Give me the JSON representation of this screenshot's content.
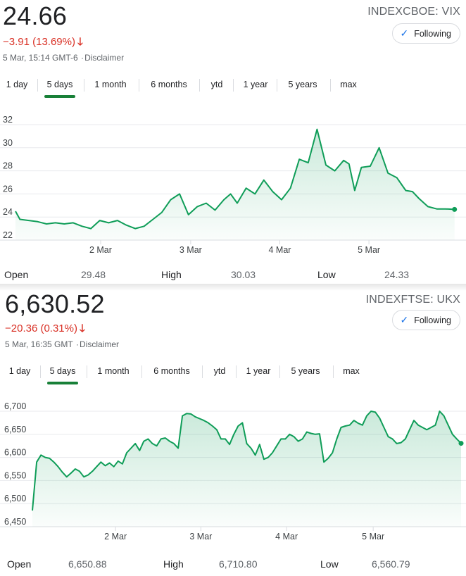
{
  "panels": [
    {
      "price": "24.66",
      "ticker": "INDEXCBOE: VIX",
      "change": "−3.91 (13.69%)",
      "change_arrow": "🡓",
      "timestamp": "5 Mar, 15:14 GMT-6",
      "disclaimer": "Disclaimer",
      "follow_label": "Following",
      "tabs": [
        "1 day",
        "5 days",
        "1 month",
        "6 months",
        "ytd",
        "1 year",
        "5 years",
        "max"
      ],
      "active_tab": "5 days",
      "stats": {
        "open_label": "Open",
        "open": "29.48",
        "high_label": "High",
        "high": "30.03",
        "low_label": "Low",
        "low": "24.33"
      },
      "colors": {
        "line": "#0f9d58",
        "fill": "#0f9d58",
        "negative": "#d93025"
      }
    },
    {
      "price": "6,630.52",
      "ticker": "INDEXFTSE: UKX",
      "change": "−20.36 (0.31%)",
      "change_arrow": "🡓",
      "timestamp": "5 Mar, 16:35 GMT",
      "disclaimer": "Disclaimer",
      "follow_label": "Following",
      "tabs": [
        "1 day",
        "5 days",
        "1 month",
        "6 months",
        "ytd",
        "1 year",
        "5 years",
        "max"
      ],
      "active_tab": "5 days",
      "stats": {
        "open_label": "Open",
        "open": "6,650.88",
        "high_label": "High",
        "high": "6,710.80",
        "low_label": "Low",
        "low": "6,560.79"
      },
      "colors": {
        "line": "#0f9d58",
        "fill": "#0f9d58",
        "negative": "#d93025"
      }
    }
  ],
  "chart_data": [
    {
      "type": "line",
      "title": "",
      "xlabel": "",
      "ylabel": "",
      "ylim": [
        22,
        32
      ],
      "yticks": [
        22,
        24,
        26,
        28,
        30,
        32
      ],
      "xlim": [
        0,
        100
      ],
      "xtick_labels": [
        "2 Mar",
        "3 Mar",
        "4 Mar",
        "5 Mar"
      ],
      "xtick_positions": [
        19.2,
        39.5,
        59.6,
        79.7
      ],
      "grid": true,
      "series": [
        {
          "x": [
            0,
            1,
            3,
            5,
            7,
            9,
            11,
            13,
            15,
            17,
            19,
            21,
            23,
            25,
            27,
            29,
            31,
            33,
            35,
            37,
            39,
            41,
            43,
            45,
            47,
            48.5,
            50,
            52,
            54,
            56,
            58,
            60,
            62,
            64,
            66,
            68,
            70,
            72,
            74,
            75.2,
            76.5,
            78,
            80,
            82,
            84,
            86,
            88,
            89.5,
            91,
            93,
            95,
            97,
            99
          ],
          "y": [
            24.5,
            23.8,
            23.7,
            23.6,
            23.4,
            23.5,
            23.4,
            23.5,
            23.2,
            23.0,
            23.7,
            23.5,
            23.7,
            23.3,
            23.0,
            23.2,
            23.8,
            24.4,
            25.5,
            26.0,
            24.2,
            24.9,
            25.2,
            24.6,
            25.5,
            26.0,
            25.2,
            26.5,
            26.0,
            27.2,
            26.2,
            25.5,
            26.5,
            29.0,
            28.7,
            31.6,
            28.5,
            28.0,
            28.9,
            28.6,
            26.3,
            28.3,
            28.4,
            30.0,
            27.8,
            27.4,
            26.3,
            26.2,
            25.6,
            24.9,
            24.7,
            24.7,
            24.66
          ]
        }
      ]
    },
    {
      "type": "line",
      "title": "",
      "xlabel": "",
      "ylabel": "",
      "ylim": [
        6450,
        6700
      ],
      "yticks": [
        6450,
        6500,
        6550,
        6600,
        6650,
        6700
      ],
      "xlim": [
        0,
        100
      ],
      "xtick_labels": [
        "2 Mar",
        "3 Mar",
        "4 Mar",
        "5 Mar"
      ],
      "xtick_positions": [
        19.4,
        39.3,
        59.3,
        79.5
      ],
      "grid": true,
      "series": [
        {
          "x": [
            0,
            1,
            2,
            3,
            4,
            5,
            6,
            7,
            8,
            9,
            10,
            11,
            12,
            13,
            14,
            15,
            16,
            17,
            18,
            19,
            20,
            21,
            22,
            23,
            24,
            25,
            26,
            27,
            28,
            29,
            30,
            31,
            32,
            33,
            34,
            35,
            36,
            37,
            38,
            39,
            40,
            41,
            42,
            43,
            44,
            45,
            46,
            47,
            48,
            49,
            50,
            51,
            52,
            53,
            54,
            55,
            56,
            57,
            58,
            59,
            60,
            61,
            62,
            63,
            64,
            65,
            66,
            67,
            68,
            69,
            70,
            71,
            72,
            73,
            74,
            75,
            76,
            77,
            78,
            79,
            80,
            81,
            82,
            83,
            84,
            85,
            86,
            87,
            88,
            89,
            90,
            91,
            92,
            93,
            94,
            95,
            96,
            97,
            98,
            99,
            100
          ],
          "y": [
            6485,
            6590,
            6605,
            6600,
            6598,
            6590,
            6580,
            6568,
            6558,
            6566,
            6575,
            6570,
            6558,
            6562,
            6570,
            6580,
            6590,
            6582,
            6588,
            6580,
            6592,
            6586,
            6610,
            6620,
            6630,
            6615,
            6635,
            6640,
            6630,
            6625,
            6640,
            6642,
            6635,
            6630,
            6620,
            6690,
            6695,
            6694,
            6688,
            6684,
            6680,
            6675,
            6668,
            6660,
            6640,
            6640,
            6628,
            6650,
            6668,
            6675,
            6630,
            6620,
            6605,
            6628,
            6596,
            6600,
            6610,
            6625,
            6640,
            6640,
            6650,
            6645,
            6635,
            6640,
            6655,
            6652,
            6650,
            6651,
            6590,
            6598,
            6610,
            6640,
            6665,
            6668,
            6670,
            6680,
            6674,
            6670,
            6690,
            6700,
            6698,
            6685,
            6665,
            6645,
            6640,
            6630,
            6632,
            6640,
            6660,
            6680,
            6670,
            6665,
            6660,
            6665,
            6670,
            6700,
            6690,
            6670,
            6650,
            6640,
            6630.52
          ]
        }
      ]
    }
  ]
}
